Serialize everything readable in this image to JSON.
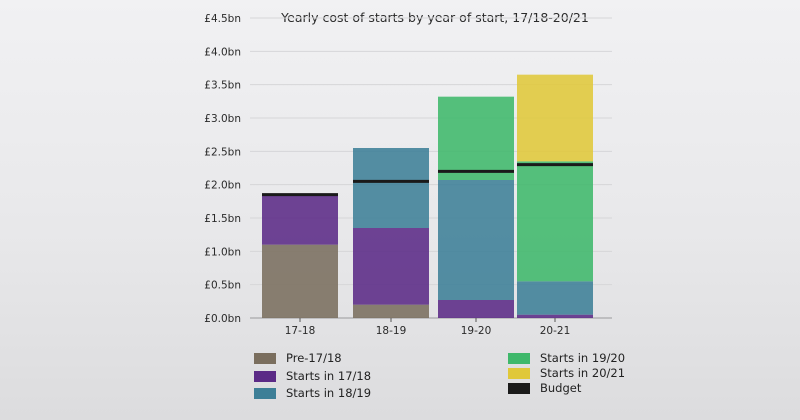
{
  "chart_data": {
    "type": "bar",
    "stacked": true,
    "title": "Yearly cost of starts by year of start, 17/18-20/21",
    "xlabel": "",
    "ylabel": "",
    "categories": [
      "17-18",
      "18-19",
      "19-20",
      "20-21"
    ],
    "y_ticks": [
      "£0.0bn",
      "£0.5bn",
      "£1.0bn",
      "£1.5bn",
      "£2.0bn",
      "£2.5bn",
      "£3.0bn",
      "£3.5bn",
      "£4.0bn",
      "£4.5bn"
    ],
    "ylim": [
      0,
      4.5
    ],
    "unit": "£bn",
    "grid": true,
    "legend_position": "bottom",
    "series": [
      {
        "name": "Pre-17/18",
        "color": "#7a6e5e",
        "values": [
          1.1,
          0.2,
          0.0,
          0.0
        ]
      },
      {
        "name": "Starts in 17/18",
        "color": "#5b2a86",
        "values": [
          0.75,
          1.15,
          0.27,
          0.05
        ]
      },
      {
        "name": "Starts in 18/19",
        "color": "#3d7f97",
        "values": [
          0.0,
          1.2,
          1.8,
          0.5
        ]
      },
      {
        "name": "Starts in 19/20",
        "color": "#3fb86b",
        "values": [
          0.0,
          0.0,
          1.25,
          1.8
        ]
      },
      {
        "name": "Starts in 20/21",
        "color": "#e0c83a",
        "values": [
          0.0,
          0.0,
          0.0,
          1.3
        ]
      }
    ],
    "budget": {
      "name": "Budget",
      "color": "#1a1a1a",
      "values": [
        1.85,
        2.05,
        2.2,
        2.3
      ]
    },
    "legend_order": [
      "Pre-17/18",
      "Starts in 17/18",
      "Starts in 18/19",
      "Starts in 19/20",
      "Starts in 20/21",
      "Budget"
    ]
  }
}
